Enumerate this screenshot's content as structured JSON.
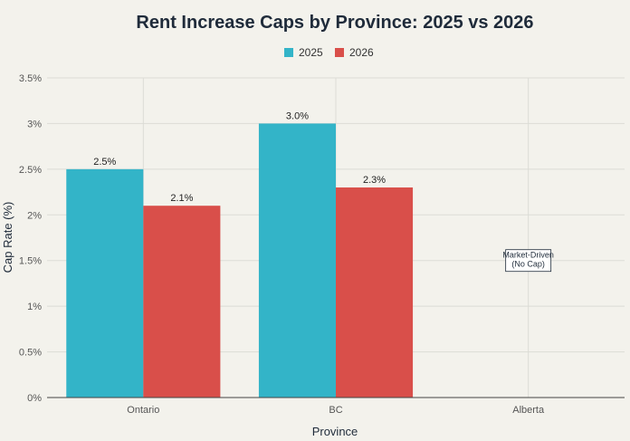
{
  "chart_data": {
    "type": "bar",
    "title": "Rent Increase Caps by Province: 2025 vs 2026",
    "xlabel": "Province",
    "ylabel": "Cap Rate (%)",
    "categories": [
      "Ontario",
      "BC",
      "Alberta"
    ],
    "series": [
      {
        "name": "2025",
        "values": [
          2.5,
          3.0,
          null
        ],
        "labels": [
          "2.5%",
          "3.0%",
          ""
        ],
        "color": "#33b4c8"
      },
      {
        "name": "2026",
        "values": [
          2.1,
          2.3,
          null
        ],
        "labels": [
          "2.1%",
          "2.3%",
          ""
        ],
        "color": "#d94f4a"
      }
    ],
    "ylim": [
      0,
      3.5
    ],
    "yticks": [
      0,
      0.5,
      1,
      1.5,
      2,
      2.5,
      3,
      3.5
    ],
    "ytick_labels": [
      "0%",
      "0.5%",
      "1%",
      "1.5%",
      "2%",
      "2.5%",
      "3%",
      "3.5%"
    ],
    "legend_position": "top-center",
    "grid": true,
    "annotations": [
      {
        "category": "Alberta",
        "y": 1.5,
        "lines": [
          "Market-Driven",
          "(No Cap)"
        ]
      }
    ]
  }
}
